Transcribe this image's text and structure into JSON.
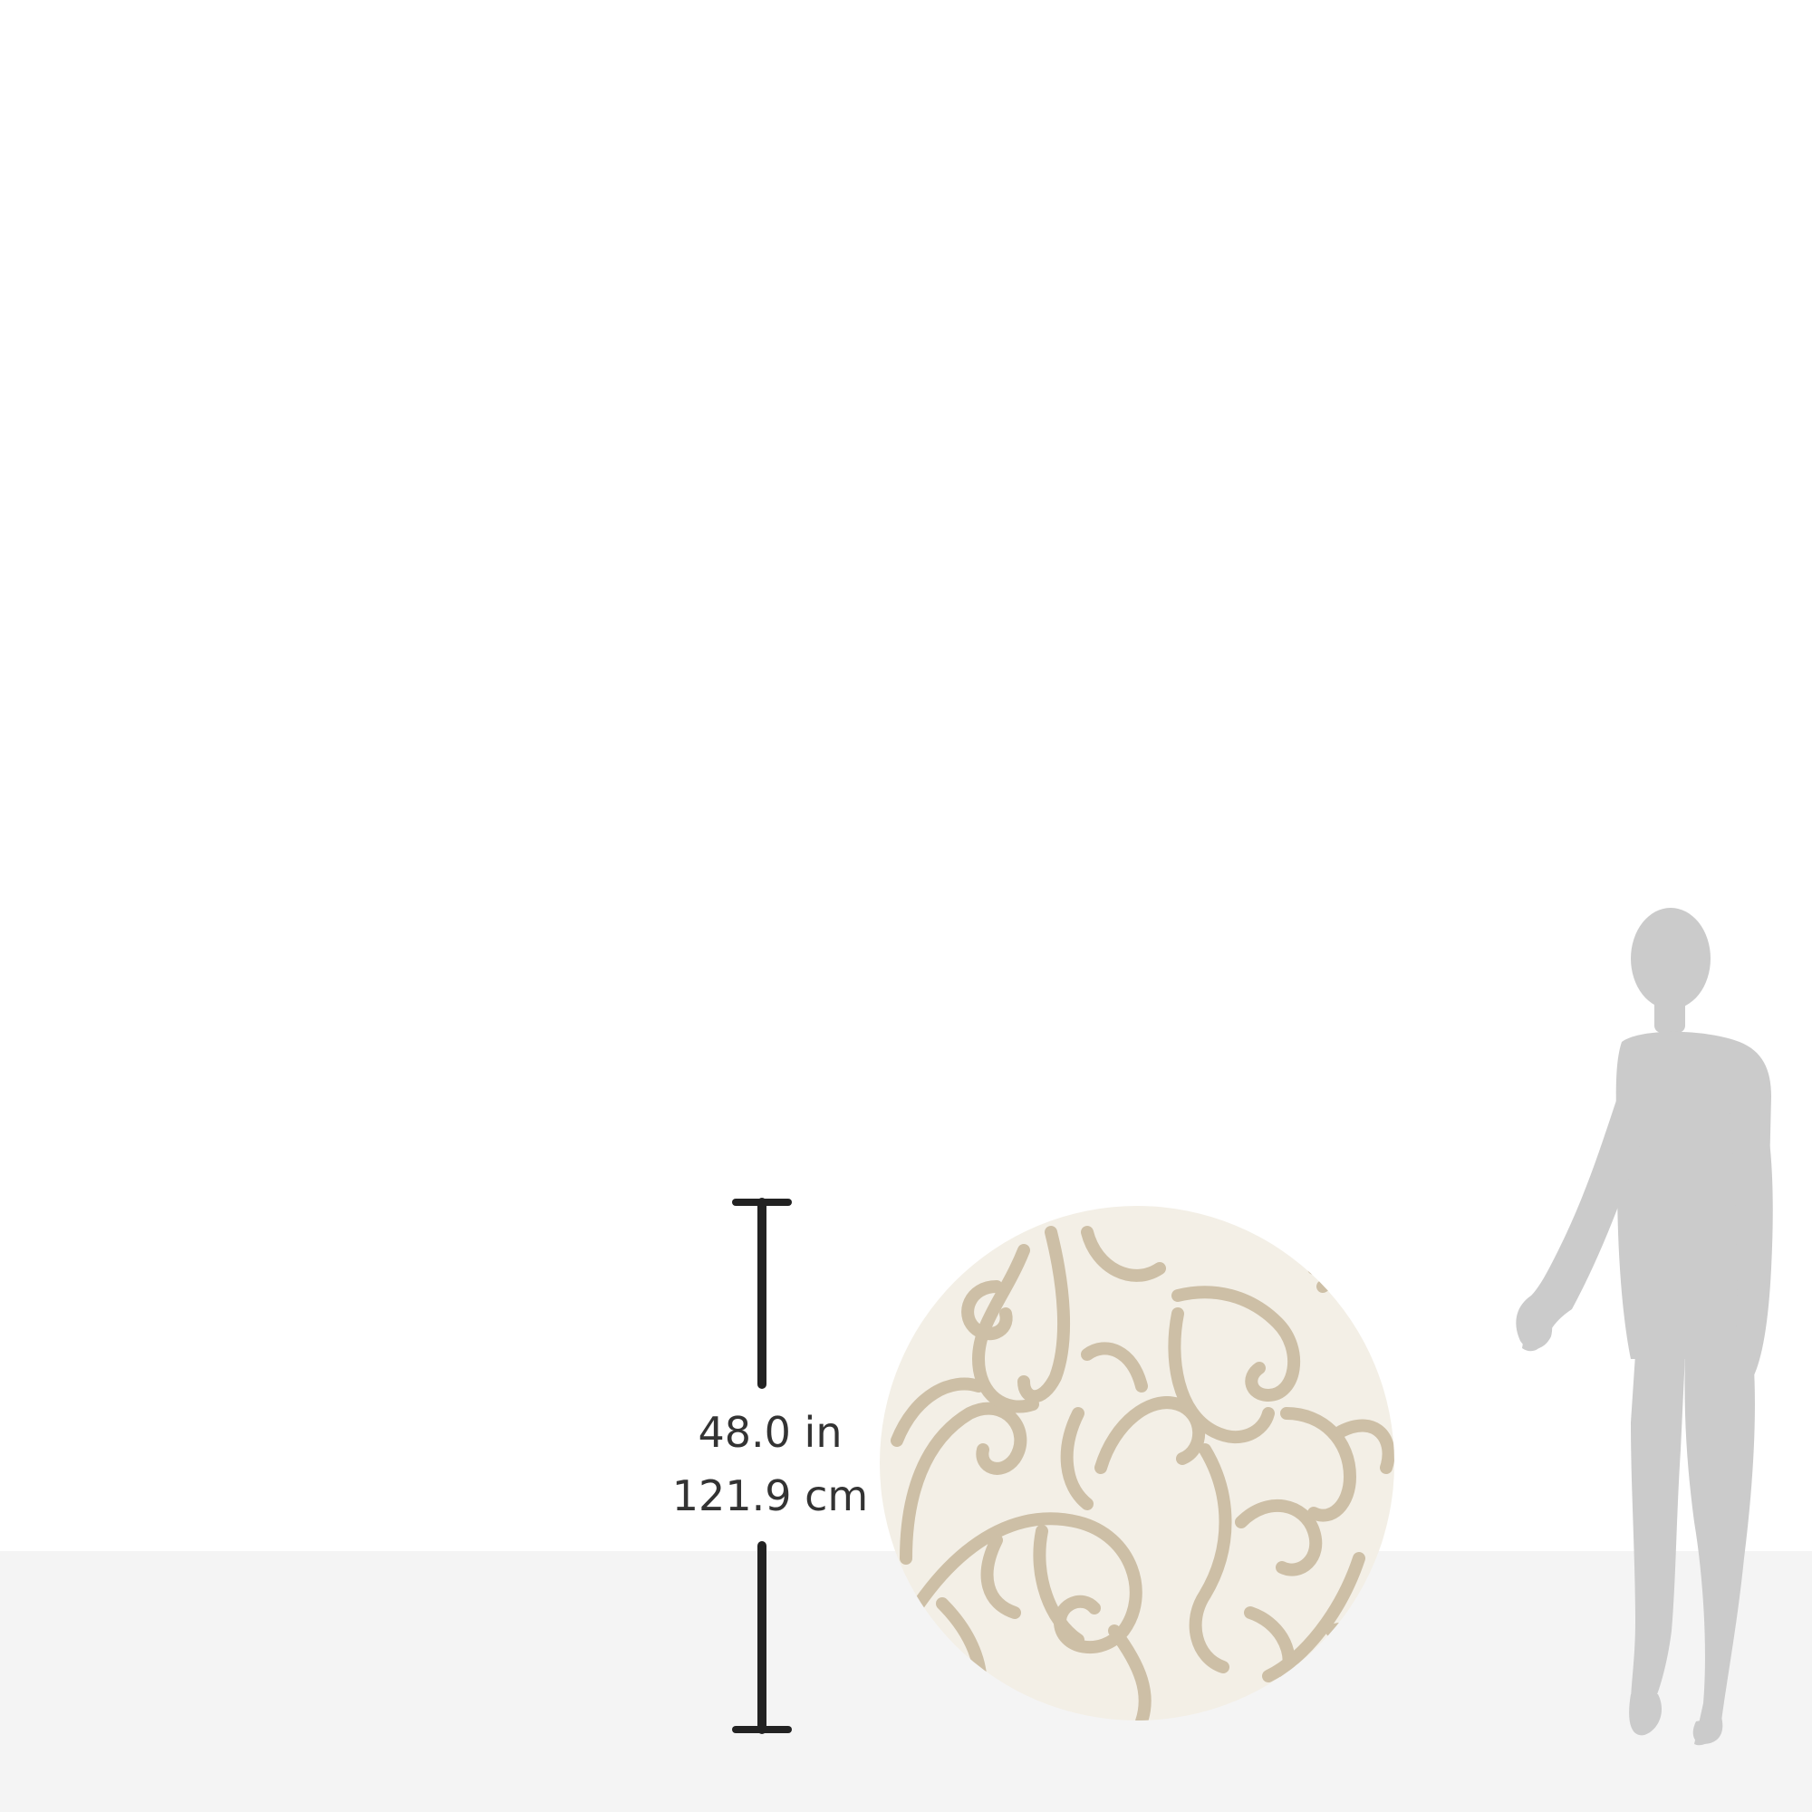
{
  "dimension": {
    "inches": "48.0 in",
    "centimeters": "121.9 cm"
  },
  "colors": {
    "background": "#ffffff",
    "floor": "#f4f4f4",
    "dimension_line": "#222222",
    "rug_base": "#f3efe6",
    "rug_pattern": "#cdbfa6",
    "silhouette": "#cbcbcb"
  },
  "icons": {
    "person": "person-silhouette-icon",
    "rug": "round-rug-image"
  }
}
